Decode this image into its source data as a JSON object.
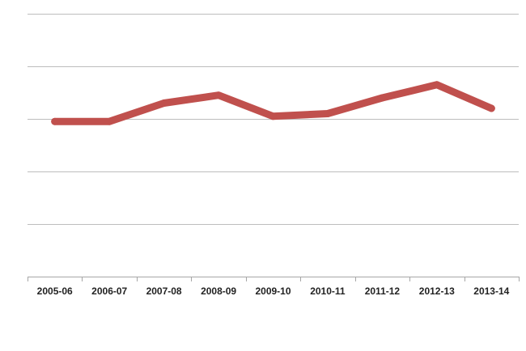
{
  "chart_data": {
    "type": "line",
    "title": "",
    "xlabel": "",
    "ylabel": "",
    "categories": [
      "2005-06",
      "2006-07",
      "2007-08",
      "2008-09",
      "2009-10",
      "2010-11",
      "2011-12",
      "2012-13",
      "2013-14"
    ],
    "series": [
      {
        "values": [
          2.95,
          2.95,
          3.3,
          3.45,
          3.05,
          3.1,
          3.4,
          3.65,
          3.2
        ],
        "color": "#c0504d"
      }
    ],
    "ylim": [
      0,
      5
    ],
    "y_gridlines": [
      1,
      2,
      3,
      4,
      5
    ],
    "y_tick_labels_shown": false,
    "grid": true,
    "legend": "none"
  }
}
